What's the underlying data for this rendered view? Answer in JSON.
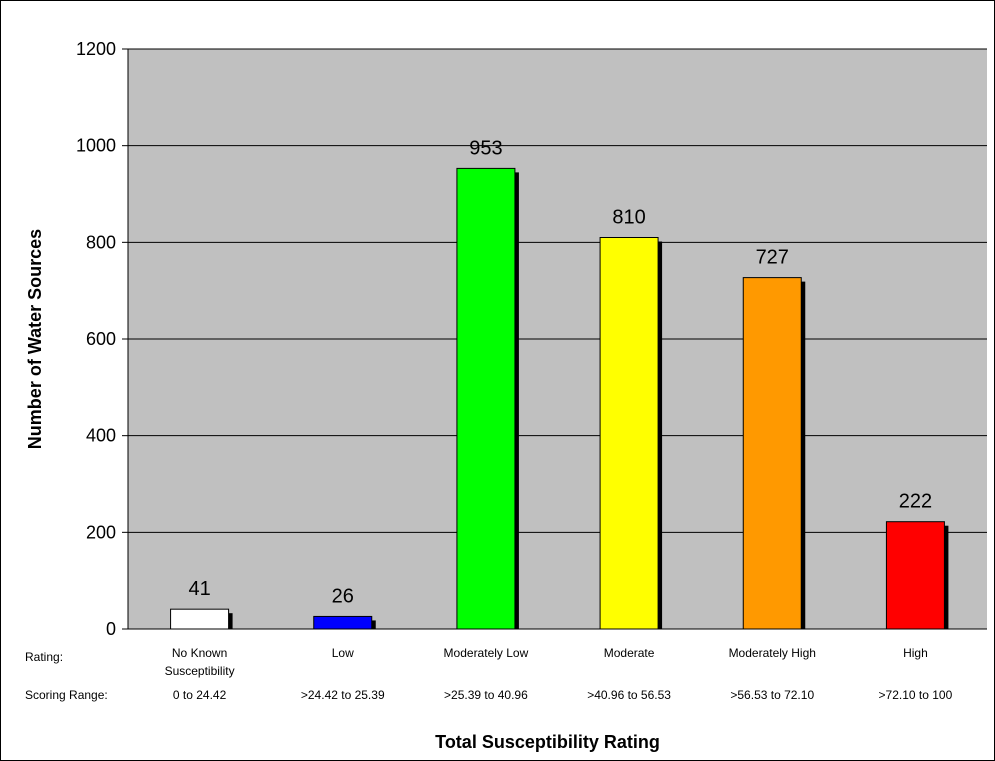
{
  "chart_data": {
    "type": "bar",
    "title": "",
    "xlabel": "Total Susceptibility Rating",
    "ylabel": "Number of Water Sources",
    "ylim": [
      0,
      1200
    ],
    "yticks": [
      0,
      200,
      400,
      600,
      800,
      1000,
      1200
    ],
    "grid": true,
    "legend": "none",
    "row_header_rating": "Rating:",
    "row_header_range": "Scoring Range:",
    "categories": [
      {
        "rating": [
          "No Known",
          "Susceptibility"
        ],
        "range": "0 to 24.42",
        "value": 41,
        "color": "#ffffff"
      },
      {
        "rating": [
          "Low"
        ],
        "range": ">24.42 to 25.39",
        "value": 26,
        "color": "#0000ff"
      },
      {
        "rating": [
          "Moderately Low"
        ],
        "range": ">25.39 to 40.96",
        "value": 953,
        "color": "#00ff00"
      },
      {
        "rating": [
          "Moderate"
        ],
        "range": ">40.96 to 56.53",
        "value": 810,
        "color": "#ffff00"
      },
      {
        "rating": [
          "Moderately High"
        ],
        "range": ">56.53 to 72.10",
        "value": 727,
        "color": "#ff9900"
      },
      {
        "rating": [
          "High"
        ],
        "range": ">72.10 to 100",
        "value": 222,
        "color": "#ff0000"
      }
    ],
    "plot_background": "#c0c0c0",
    "shadow_color": "#000000"
  }
}
